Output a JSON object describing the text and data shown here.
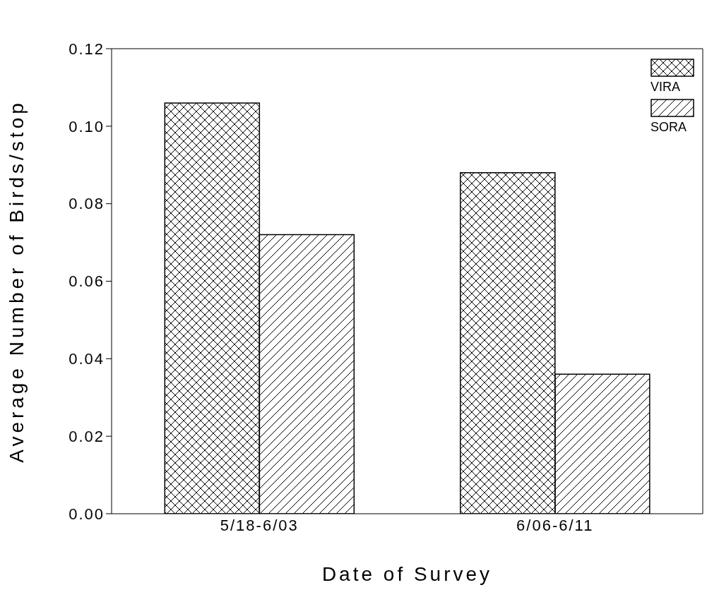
{
  "chart_data": {
    "type": "bar",
    "xlabel": "Date of Survey",
    "ylabel": "Average Number of Birds/stop",
    "categories": [
      "5/18-6/03",
      "6/06-6/11"
    ],
    "series": [
      {
        "name": "VIRA",
        "color": "#000000",
        "values": [
          0.106,
          0.088
        ]
      },
      {
        "name": "SORA",
        "color": "#000000",
        "values": [
          0.072,
          0.036
        ]
      }
    ],
    "ylim": [
      0,
      0.12
    ],
    "yticks": [
      {
        "value": 0,
        "label": "0.00"
      },
      {
        "value": 0.02,
        "label": "0.02"
      },
      {
        "value": 0.04,
        "label": "0.04"
      },
      {
        "value": 0.06,
        "label": "0.06"
      },
      {
        "value": 0.08,
        "label": "0.08"
      },
      {
        "value": 0.1,
        "label": "0.10"
      },
      {
        "value": 0.12,
        "label": "0.12"
      }
    ],
    "legend": "top right",
    "grid": false
  }
}
